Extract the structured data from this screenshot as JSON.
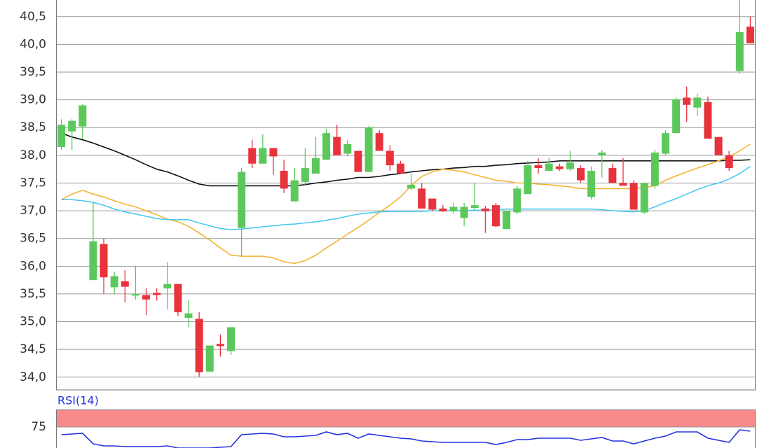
{
  "chart_data": [
    {
      "type": "candlestick",
      "open": [
        38.15,
        38.43,
        38.52,
        35.75,
        36.4,
        35.62,
        35.73,
        35.47,
        35.48,
        35.52,
        35.6,
        35.68,
        35.07,
        35.05,
        34.1,
        34.6,
        34.47,
        36.69,
        38.13,
        37.85,
        38.13,
        37.72,
        37.17,
        37.52,
        37.67,
        37.92,
        38.33,
        38.03,
        38.08,
        37.7,
        38.4,
        38.08,
        37.85,
        37.4,
        37.4,
        37.22,
        37.04,
        36.99,
        36.87,
        37.05,
        37.04,
        37.1,
        36.67,
        36.97,
        37.3,
        37.82,
        37.72,
        37.8,
        37.75,
        37.77,
        37.25,
        38.0,
        37.77,
        37.5,
        37.5,
        36.97,
        37.45,
        38.03,
        38.4,
        39.04,
        38.86,
        38.96,
        38.33,
        38.0,
        39.52,
        40.32
      ],
      "high": [
        38.65,
        38.65,
        38.93,
        37.15,
        36.5,
        35.9,
        35.93,
        36.0,
        35.6,
        35.6,
        36.08,
        35.68,
        35.4,
        35.17,
        34.57,
        34.77,
        34.9,
        37.77,
        38.28,
        38.38,
        38.13,
        37.92,
        37.77,
        38.13,
        38.33,
        38.48,
        38.55,
        38.28,
        38.08,
        38.53,
        38.45,
        38.18,
        37.9,
        37.67,
        37.5,
        37.22,
        37.1,
        37.14,
        37.14,
        37.5,
        37.09,
        37.14,
        37.0,
        37.45,
        37.9,
        37.95,
        37.95,
        37.85,
        38.08,
        37.82,
        37.8,
        38.1,
        37.85,
        37.95,
        37.55,
        37.5,
        38.1,
        38.45,
        39.04,
        39.24,
        39.11,
        39.06,
        38.33,
        38.08,
        40.8,
        40.5
      ],
      "low": [
        38.1,
        38.1,
        38.3,
        35.75,
        35.5,
        35.5,
        35.35,
        35.4,
        35.12,
        35.38,
        35.22,
        35.1,
        34.9,
        34.01,
        34.1,
        34.37,
        34.4,
        36.18,
        37.77,
        37.85,
        37.65,
        37.32,
        37.17,
        37.45,
        37.67,
        37.92,
        38.0,
        37.98,
        37.7,
        37.7,
        38.08,
        37.72,
        37.67,
        37.37,
        37.04,
        36.99,
        36.98,
        36.94,
        36.72,
        37.02,
        36.6,
        36.7,
        36.67,
        36.94,
        37.3,
        37.67,
        37.72,
        37.72,
        37.72,
        37.5,
        37.2,
        37.6,
        37.5,
        37.45,
        37.02,
        36.94,
        37.4,
        38.0,
        38.4,
        38.6,
        38.71,
        38.3,
        38.0,
        37.72,
        39.47,
        40.02
      ],
      "close": [
        38.55,
        38.62,
        38.9,
        36.45,
        35.8,
        35.82,
        35.63,
        35.5,
        35.4,
        35.48,
        35.68,
        35.17,
        35.15,
        34.09,
        34.57,
        34.56,
        34.9,
        37.7,
        37.85,
        38.13,
        37.98,
        37.4,
        37.55,
        37.77,
        37.95,
        38.4,
        38.0,
        38.2,
        37.7,
        38.5,
        38.08,
        37.82,
        37.67,
        37.47,
        37.04,
        37.02,
        36.99,
        37.07,
        37.07,
        37.1,
        36.99,
        36.72,
        37.0,
        37.4,
        37.82,
        37.77,
        37.85,
        37.75,
        37.87,
        37.55,
        37.72,
        38.05,
        37.5,
        37.45,
        37.02,
        37.5,
        38.05,
        38.4,
        39.01,
        38.91,
        39.04,
        38.3,
        38.0,
        37.77,
        40.22,
        40.02
      ],
      "up_color": "#5cc85c",
      "down_color": "#e8323c",
      "lines": [
        {
          "color": "#111111",
          "values": [
            38.4,
            38.33,
            38.28,
            38.22,
            38.15,
            38.08,
            38.0,
            37.92,
            37.83,
            37.75,
            37.7,
            37.63,
            37.55,
            37.48,
            37.45,
            37.45,
            37.45,
            37.45,
            37.45,
            37.45,
            37.45,
            37.45,
            37.45,
            37.47,
            37.5,
            37.52,
            37.55,
            37.57,
            37.6,
            37.6,
            37.62,
            37.65,
            37.67,
            37.7,
            37.72,
            37.74,
            37.75,
            37.77,
            37.78,
            37.8,
            37.8,
            37.82,
            37.83,
            37.85,
            37.86,
            37.87,
            37.88,
            37.9,
            37.9,
            37.9,
            37.9,
            37.9,
            37.9,
            37.9,
            37.9,
            37.9,
            37.9,
            37.9,
            37.9,
            37.9,
            37.9,
            37.9,
            37.9,
            37.91,
            37.91,
            37.92
          ]
        },
        {
          "color": "#f5b335",
          "values": [
            37.2,
            37.3,
            37.37,
            37.3,
            37.25,
            37.18,
            37.12,
            37.07,
            37.0,
            36.93,
            36.85,
            36.8,
            36.72,
            36.6,
            36.47,
            36.33,
            36.2,
            36.18,
            36.18,
            36.18,
            36.15,
            36.08,
            36.05,
            36.1,
            36.2,
            36.33,
            36.45,
            36.58,
            36.7,
            36.83,
            36.97,
            37.1,
            37.25,
            37.45,
            37.62,
            37.7,
            37.75,
            37.73,
            37.7,
            37.65,
            37.6,
            37.55,
            37.53,
            37.5,
            37.5,
            37.48,
            37.47,
            37.45,
            37.43,
            37.4,
            37.4,
            37.4,
            37.4,
            37.4,
            37.4,
            37.42,
            37.45,
            37.55,
            37.63,
            37.7,
            37.77,
            37.83,
            37.9,
            37.97,
            38.08,
            38.2
          ]
        },
        {
          "color": "#4cc9f0",
          "values": [
            37.2,
            37.2,
            37.18,
            37.15,
            37.1,
            37.03,
            36.98,
            36.94,
            36.9,
            36.86,
            36.84,
            36.84,
            36.84,
            36.78,
            36.73,
            36.68,
            36.66,
            36.67,
            36.69,
            36.71,
            36.73,
            36.75,
            36.76,
            36.78,
            36.8,
            36.83,
            36.86,
            36.9,
            36.94,
            36.96,
            36.98,
            36.99,
            36.99,
            36.99,
            36.99,
            37.0,
            37.0,
            37.0,
            37.0,
            37.01,
            37.01,
            37.02,
            37.03,
            37.03,
            37.03,
            37.03,
            37.03,
            37.03,
            37.03,
            37.03,
            37.03,
            37.02,
            37.0,
            36.99,
            36.98,
            37.0,
            37.07,
            37.15,
            37.22,
            37.3,
            37.38,
            37.45,
            37.5,
            37.57,
            37.67,
            37.8
          ]
        }
      ],
      "ylim": [
        33.77,
        40.8
      ],
      "yticks": [
        {
          "value": 34.0,
          "label": "34,0"
        },
        {
          "value": 34.5,
          "label": "34,5"
        },
        {
          "value": 35.0,
          "label": "35,0"
        },
        {
          "value": 35.5,
          "label": "35,5"
        },
        {
          "value": 36.0,
          "label": "36,0"
        },
        {
          "value": 36.5,
          "label": "36,5"
        },
        {
          "value": 37.0,
          "label": "37,0"
        },
        {
          "value": 37.5,
          "label": "37,5"
        },
        {
          "value": 38.0,
          "label": "38,0"
        },
        {
          "value": 38.5,
          "label": "38,5"
        },
        {
          "value": 39.0,
          "label": "39,0"
        },
        {
          "value": 39.5,
          "label": "39,5"
        },
        {
          "value": 40.0,
          "label": "40,0"
        },
        {
          "value": 40.5,
          "label": "40,5"
        }
      ],
      "grid": true
    },
    {
      "type": "line",
      "title": "RSI(14)",
      "values": [
        64,
        65,
        66,
        51,
        48,
        48,
        47,
        47,
        47,
        47,
        48,
        45,
        45,
        45,
        45,
        46,
        47,
        64,
        65,
        66,
        65,
        61,
        61,
        62,
        63,
        68,
        64,
        66,
        59,
        65,
        63,
        61,
        59,
        58,
        55,
        54,
        53,
        53,
        53,
        53,
        53,
        50,
        53,
        57,
        57,
        59,
        59,
        59,
        59,
        56,
        58,
        60,
        55,
        55,
        51,
        55,
        59,
        62,
        68,
        68,
        68,
        59,
        56,
        53,
        71,
        69
      ],
      "color": "#2233dd",
      "band": [
        75,
        100
      ],
      "band_color": "#f88a8a",
      "ylim": [
        45,
        100
      ],
      "yticks": [
        75
      ],
      "grid": true
    }
  ]
}
